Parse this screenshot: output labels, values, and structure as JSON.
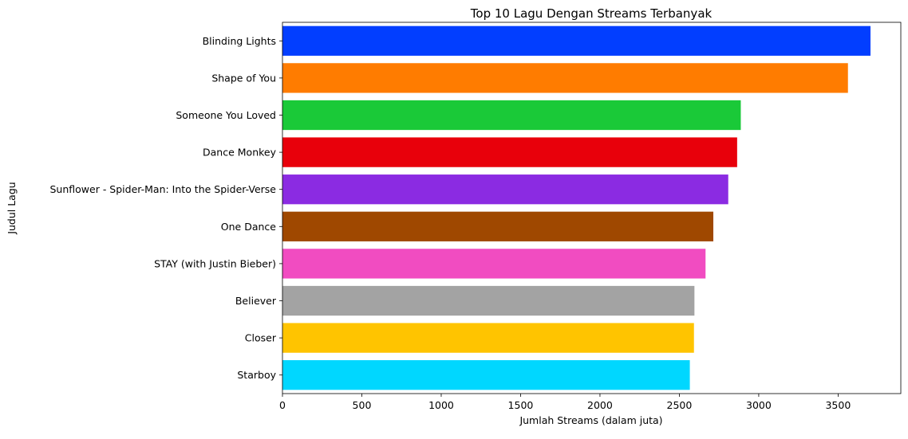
{
  "chart_data": {
    "type": "bar",
    "orientation": "horizontal",
    "title": "Top 10 Lagu Dengan Streams Terbanyak",
    "xlabel": "Jumlah Streams (dalam juta)",
    "ylabel": "Judul Lagu",
    "xlim": [
      0,
      3895
    ],
    "xticks": [
      0,
      500,
      1000,
      1500,
      2000,
      2500,
      3000,
      3500
    ],
    "grid": false,
    "legend": "none",
    "categories": [
      "Blinding Lights",
      "Shape of You",
      "Someone You Loved",
      "Dance Monkey",
      "Sunflower - Spider-Man: Into the Spider-Verse",
      "One Dance",
      "STAY (with Justin Bieber)",
      "Believer",
      "Closer",
      "Starboy"
    ],
    "values": [
      3704,
      3562,
      2887,
      2864,
      2808,
      2714,
      2665,
      2595,
      2592,
      2566
    ],
    "colors": [
      "#023eff",
      "#ff7c00",
      "#1ac938",
      "#e8000b",
      "#8b2be2",
      "#9f4800",
      "#f14cc1",
      "#a3a3a3",
      "#ffc400",
      "#00d7ff"
    ]
  }
}
